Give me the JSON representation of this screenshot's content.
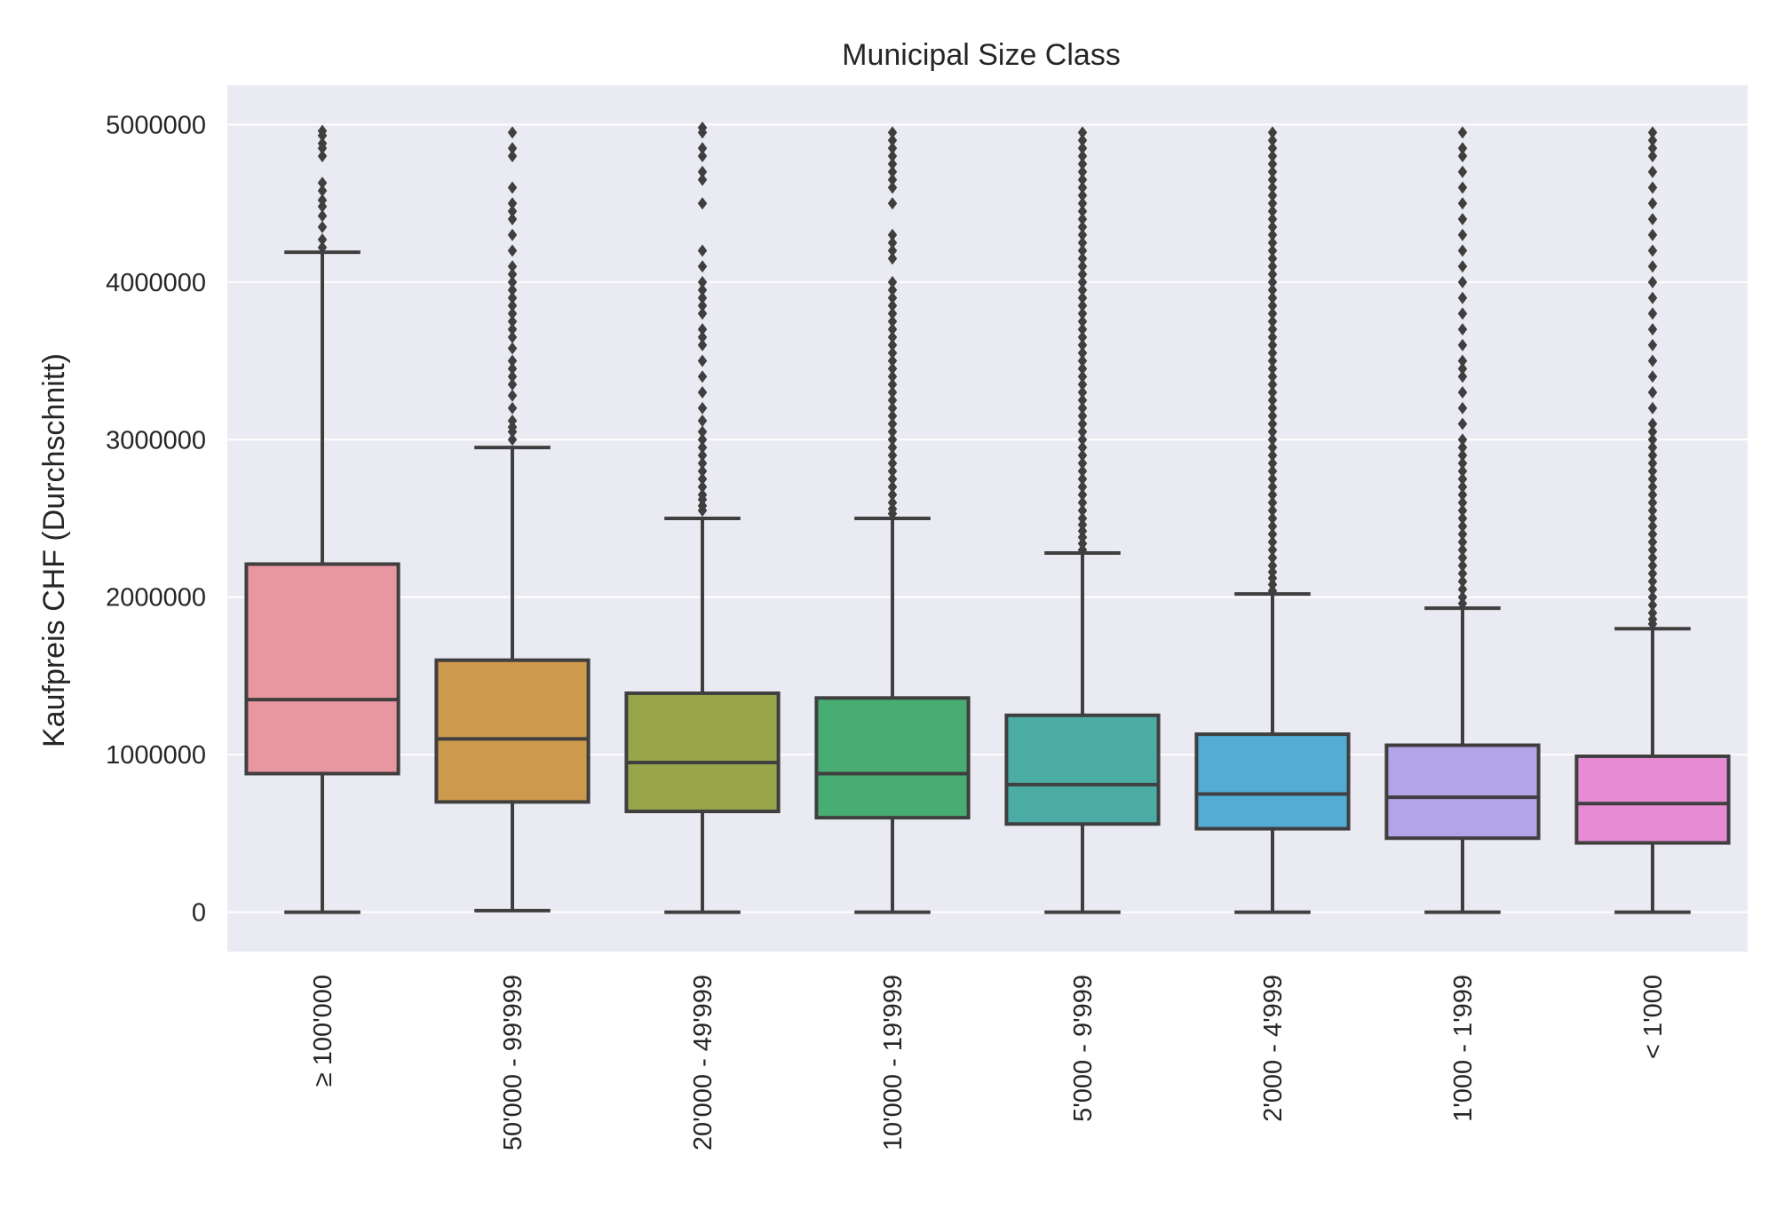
{
  "chart_data": {
    "type": "box",
    "title": "Municipal Size Class",
    "xlabel": "",
    "ylabel": "Kaufpreis CHF (Durchschnitt)",
    "ylim": [
      -250000,
      5250000
    ],
    "yticks": [
      0,
      1000000,
      2000000,
      3000000,
      4000000,
      5000000
    ],
    "ytick_labels": [
      "0",
      "1000000",
      "2000000",
      "3000000",
      "4000000",
      "5000000"
    ],
    "grid": true,
    "categories": [
      "≥ 100'000",
      "50'000 - 99'999",
      "20'000 - 49'999",
      "10'000 - 19'999",
      "5'000 - 9'999",
      "2'000 - 4'999",
      "1'000 - 1'999",
      "< 1'000"
    ],
    "boxes": [
      {
        "whisker_low": 0,
        "q1": 880000,
        "median": 1350000,
        "q3": 2210000,
        "whisker_high": 4190000,
        "color": "#e8969f",
        "outliers": [
          4220000,
          4270000,
          4350000,
          4420000,
          4480000,
          4520000,
          4580000,
          4630000,
          4800000,
          4850000,
          4880000,
          4930000,
          4960000
        ]
      },
      {
        "whisker_low": 10000,
        "q1": 700000,
        "median": 1100000,
        "q3": 1600000,
        "whisker_high": 2950000,
        "color": "#cd994c",
        "outliers": [
          3000000,
          3050000,
          3080000,
          3120000,
          3200000,
          3280000,
          3350000,
          3400000,
          3450000,
          3500000,
          3580000,
          3650000,
          3700000,
          3750000,
          3800000,
          3850000,
          3900000,
          3950000,
          4000000,
          4050000,
          4100000,
          4200000,
          4300000,
          4400000,
          4450000,
          4500000,
          4600000,
          4800000,
          4850000,
          4950000
        ]
      },
      {
        "whisker_low": 0,
        "q1": 640000,
        "median": 950000,
        "q3": 1390000,
        "whisker_high": 2500000,
        "color": "#99a54a",
        "outliers": [
          2550000,
          2580000,
          2620000,
          2650000,
          2700000,
          2750000,
          2800000,
          2850000,
          2900000,
          2950000,
          3000000,
          3050000,
          3120000,
          3200000,
          3300000,
          3400000,
          3500000,
          3600000,
          3650000,
          3700000,
          3800000,
          3850000,
          3900000,
          3950000,
          4000000,
          4100000,
          4200000,
          4500000,
          4650000,
          4700000,
          4800000,
          4850000,
          4950000,
          4980000
        ]
      },
      {
        "whisker_low": 0,
        "q1": 600000,
        "median": 880000,
        "q3": 1360000,
        "whisker_high": 2500000,
        "color": "#48ad72",
        "outliers": [
          2530000,
          2560000,
          2600000,
          2650000,
          2700000,
          2750000,
          2800000,
          2850000,
          2900000,
          2950000,
          3000000,
          3050000,
          3100000,
          3150000,
          3200000,
          3250000,
          3300000,
          3350000,
          3400000,
          3450000,
          3500000,
          3550000,
          3600000,
          3650000,
          3700000,
          3750000,
          3800000,
          3850000,
          3900000,
          3950000,
          4000000,
          4150000,
          4200000,
          4250000,
          4300000,
          4500000,
          4600000,
          4650000,
          4700000,
          4750000,
          4800000,
          4850000,
          4900000,
          4950000
        ]
      },
      {
        "whisker_low": 0,
        "q1": 560000,
        "median": 810000,
        "q3": 1250000,
        "whisker_high": 2280000,
        "color": "#4bac a6",
        "outliers": [
          2300000,
          2340000,
          2380000,
          2420000,
          2460000,
          2500000,
          2550000,
          2600000,
          2650000,
          2700000,
          2750000,
          2800000,
          2850000,
          2900000,
          2950000,
          3000000,
          3050000,
          3100000,
          3150000,
          3200000,
          3250000,
          3300000,
          3350000,
          3400000,
          3450000,
          3500000,
          3550000,
          3600000,
          3650000,
          3700000,
          3750000,
          3800000,
          3850000,
          3900000,
          3950000,
          4000000,
          4050000,
          4100000,
          4150000,
          4200000,
          4250000,
          4300000,
          4350000,
          4400000,
          4450000,
          4500000,
          4550000,
          4600000,
          4650000,
          4700000,
          4750000,
          4800000,
          4850000,
          4900000,
          4950000
        ]
      },
      {
        "whisker_low": 0,
        "q1": 530000,
        "median": 750000,
        "q3": 1130000,
        "whisker_high": 2020000,
        "color": "#52acd4",
        "outliers": [
          2040000,
          2080000,
          2120000,
          2160000,
          2200000,
          2250000,
          2300000,
          2350000,
          2400000,
          2450000,
          2500000,
          2550000,
          2600000,
          2650000,
          2700000,
          2750000,
          2800000,
          2850000,
          2900000,
          2950000,
          3000000,
          3050000,
          3100000,
          3150000,
          3200000,
          3250000,
          3300000,
          3350000,
          3400000,
          3450000,
          3500000,
          3550000,
          3600000,
          3650000,
          3700000,
          3750000,
          3800000,
          3850000,
          3900000,
          3950000,
          4000000,
          4050000,
          4100000,
          4150000,
          4200000,
          4250000,
          4300000,
          4350000,
          4400000,
          4450000,
          4500000,
          4550000,
          4600000,
          4650000,
          4700000,
          4750000,
          4800000,
          4850000,
          4900000,
          4950000
        ]
      },
      {
        "whisker_low": 0,
        "q1": 470000,
        "median": 730000,
        "q3": 1060000,
        "whisker_high": 1930000,
        "color": "#b3a4e8",
        "outliers": [
          1960000,
          2000000,
          2050000,
          2100000,
          2150000,
          2200000,
          2250000,
          2300000,
          2350000,
          2400000,
          2450000,
          2500000,
          2550000,
          2600000,
          2650000,
          2700000,
          2750000,
          2800000,
          2850000,
          2900000,
          2950000,
          3000000,
          3100000,
          3200000,
          3300000,
          3400000,
          3450000,
          3500000,
          3600000,
          3700000,
          3800000,
          3900000,
          4000000,
          4100000,
          4200000,
          4300000,
          4400000,
          4500000,
          4600000,
          4700000,
          4800000,
          4850000,
          4950000
        ]
      },
      {
        "whisker_low": 0,
        "q1": 440000,
        "median": 690000,
        "q3": 990000,
        "whisker_high": 1800000,
        "color": "#e78bd4",
        "outliers": [
          1830000,
          1860000,
          1900000,
          1950000,
          2000000,
          2050000,
          2100000,
          2150000,
          2200000,
          2250000,
          2300000,
          2350000,
          2400000,
          2450000,
          2500000,
          2550000,
          2600000,
          2650000,
          2700000,
          2750000,
          2800000,
          2850000,
          2900000,
          2950000,
          3000000,
          3050000,
          3100000,
          3200000,
          3300000,
          3400000,
          3500000,
          3600000,
          3700000,
          3800000,
          3900000,
          4000000,
          4100000,
          4200000,
          4300000,
          4400000,
          4500000,
          4600000,
          4700000,
          4800000,
          4850000,
          4900000,
          4950000
        ]
      }
    ]
  }
}
